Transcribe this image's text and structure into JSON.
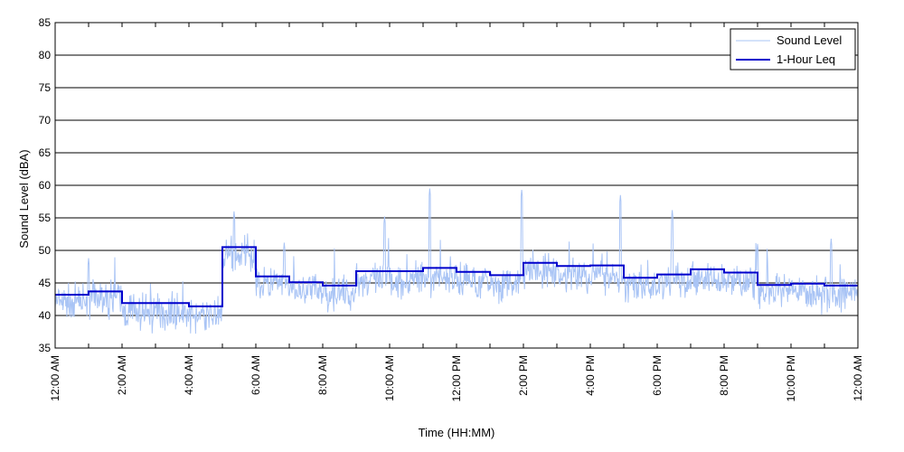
{
  "chart_data": {
    "type": "line",
    "xlabel": "Time (HH:MM)",
    "ylabel": "Sound Level (dBA)",
    "xlim": [
      0,
      24
    ],
    "ylim": [
      35,
      85
    ],
    "y_ticks": [
      35,
      40,
      45,
      50,
      55,
      60,
      65,
      70,
      75,
      80,
      85
    ],
    "x_ticks": [
      {
        "hour": 0,
        "label": "12:00 AM"
      },
      {
        "hour": 2,
        "label": "2:00 AM"
      },
      {
        "hour": 4,
        "label": "4:00 AM"
      },
      {
        "hour": 6,
        "label": "6:00 AM"
      },
      {
        "hour": 8,
        "label": "8:00 AM"
      },
      {
        "hour": 10,
        "label": "10:00 AM"
      },
      {
        "hour": 12,
        "label": "12:00 PM"
      },
      {
        "hour": 14,
        "label": "2:00 PM"
      },
      {
        "hour": 16,
        "label": "4:00 PM"
      },
      {
        "hour": 18,
        "label": "6:00 PM"
      },
      {
        "hour": 20,
        "label": "8:00 PM"
      },
      {
        "hour": 22,
        "label": "10:00 PM"
      },
      {
        "hour": 24,
        "label": "12:00 AM"
      }
    ],
    "grid": "horizontal",
    "legend_position": "top-right",
    "series": [
      {
        "name": "Sound Level",
        "color": "#a9c4f5",
        "hourly_mean": [
          43.2,
          43.6,
          41.8,
          41.7,
          41.2,
          50.5,
          46.0,
          45.0,
          44.5,
          46.6,
          46.6,
          47.2,
          46.5,
          46.0,
          47.9,
          47.4,
          47.5,
          45.6,
          46.2,
          46.8,
          46.5,
          44.6,
          44.7,
          44.4
        ],
        "peaks": [
          {
            "hour": 1.0,
            "value": 48.8
          },
          {
            "hour": 5.35,
            "value": 56.0
          },
          {
            "hour": 6.85,
            "value": 51.2
          },
          {
            "hour": 9.85,
            "value": 55.2
          },
          {
            "hour": 11.2,
            "value": 59.5
          },
          {
            "hour": 13.95,
            "value": 59.3
          },
          {
            "hour": 16.9,
            "value": 58.5
          },
          {
            "hour": 18.45,
            "value": 56.2
          },
          {
            "hour": 21.0,
            "value": 51.0
          },
          {
            "hour": 23.2,
            "value": 51.8
          }
        ]
      },
      {
        "name": "1-Hour Leq",
        "color": "#0000cc",
        "hour_starts": [
          0,
          1,
          2,
          3,
          4,
          5,
          6,
          7,
          8,
          9,
          10,
          11,
          12,
          13,
          14,
          15,
          16,
          17,
          18,
          19,
          20,
          21,
          22,
          23
        ],
        "values": [
          43.2,
          43.7,
          41.9,
          41.9,
          41.4,
          50.5,
          46.0,
          45.1,
          44.6,
          46.8,
          46.8,
          47.3,
          46.7,
          46.2,
          48.1,
          47.6,
          47.7,
          45.8,
          46.3,
          47.1,
          46.6,
          44.7,
          44.9,
          44.6
        ]
      }
    ]
  }
}
